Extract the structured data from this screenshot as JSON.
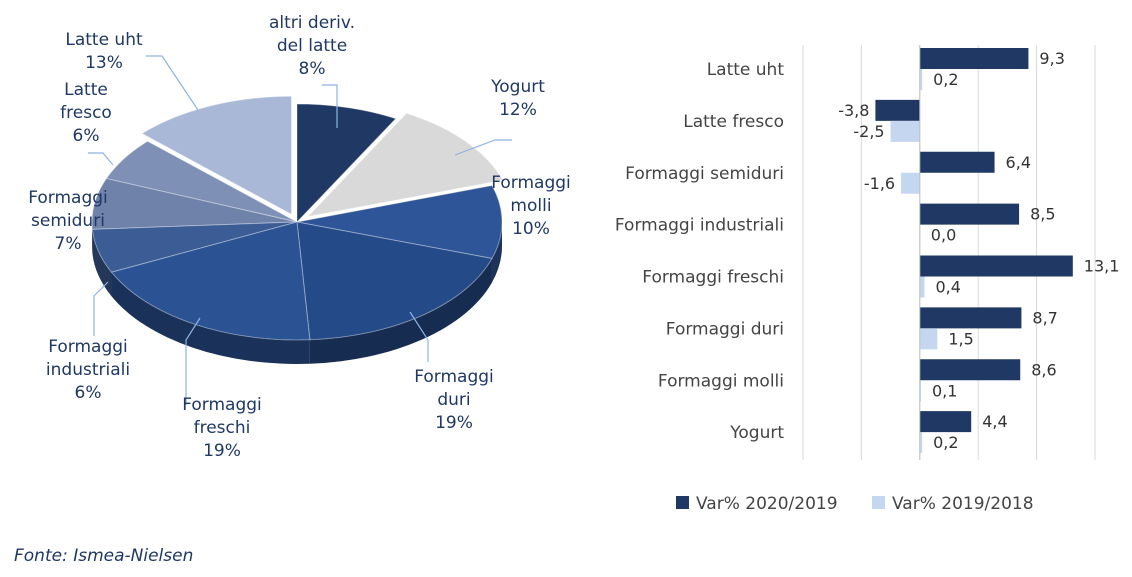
{
  "colors": {
    "pie_palette": [
      "#203864",
      "#D9D9D9",
      "#2E5597",
      "#244A87",
      "#2B5394",
      "#3B5C95",
      "#6E82AA",
      "#7E90B6",
      "#A9B8D6"
    ],
    "leader": "#8EB4E3",
    "label": "#1F3864",
    "series_2020": "#203864",
    "series_2019": "#C5D6F0",
    "axis_line": "#D9D9D9"
  },
  "chart_data": [
    {
      "type": "pie",
      "title": "",
      "slices": [
        {
          "label": [
            "altri deriv.",
            "del latte"
          ],
          "value": 8,
          "pct": "8%"
        },
        {
          "label": [
            "Yogurt"
          ],
          "value": 12,
          "pct": "12%"
        },
        {
          "label": [
            "Formaggi",
            "molli"
          ],
          "value": 10,
          "pct": "10%"
        },
        {
          "label": [
            "Formaggi",
            "duri"
          ],
          "value": 19,
          "pct": "19%"
        },
        {
          "label": [
            "Formaggi",
            "freschi"
          ],
          "value": 19,
          "pct": "19%"
        },
        {
          "label": [
            "Formaggi",
            "industriali"
          ],
          "value": 6,
          "pct": "6%"
        },
        {
          "label": [
            "Formaggi",
            "semiduri"
          ],
          "value": 7,
          "pct": "7%"
        },
        {
          "label": [
            "Latte",
            "fresco"
          ],
          "value": 6,
          "pct": "6%"
        },
        {
          "label": [
            "Latte uht"
          ],
          "value": 13,
          "pct": "13%"
        }
      ]
    },
    {
      "type": "bar",
      "orientation": "horizontal",
      "title": "",
      "categories": [
        "Latte uht",
        "Latte fresco",
        "Formaggi semiduri",
        "Formaggi industriali",
        "Formaggi freschi",
        "Formaggi duri",
        "Formaggi molli",
        "Yogurt"
      ],
      "series": [
        {
          "name": "Var% 2020/2019",
          "values": [
            9.3,
            -3.8,
            6.4,
            8.5,
            13.1,
            8.7,
            8.6,
            4.4
          ],
          "labels": [
            "9,3",
            "-3,8",
            "6,4",
            "8,5",
            "13,1",
            "8,7",
            "8,6",
            "4,4"
          ]
        },
        {
          "name": "Var% 2019/2018",
          "values": [
            0.2,
            -2.5,
            -1.6,
            0.0,
            0.4,
            1.5,
            0.1,
            0.2
          ],
          "labels": [
            "0,2",
            "-2,5",
            "-1,6",
            "0,0",
            "0,4",
            "1,5",
            "0,1",
            "0,2"
          ]
        }
      ],
      "xlim": [
        -10,
        15
      ],
      "grid": true,
      "legend": "bottom"
    }
  ],
  "source": "Fonte: Ismea-Nielsen"
}
